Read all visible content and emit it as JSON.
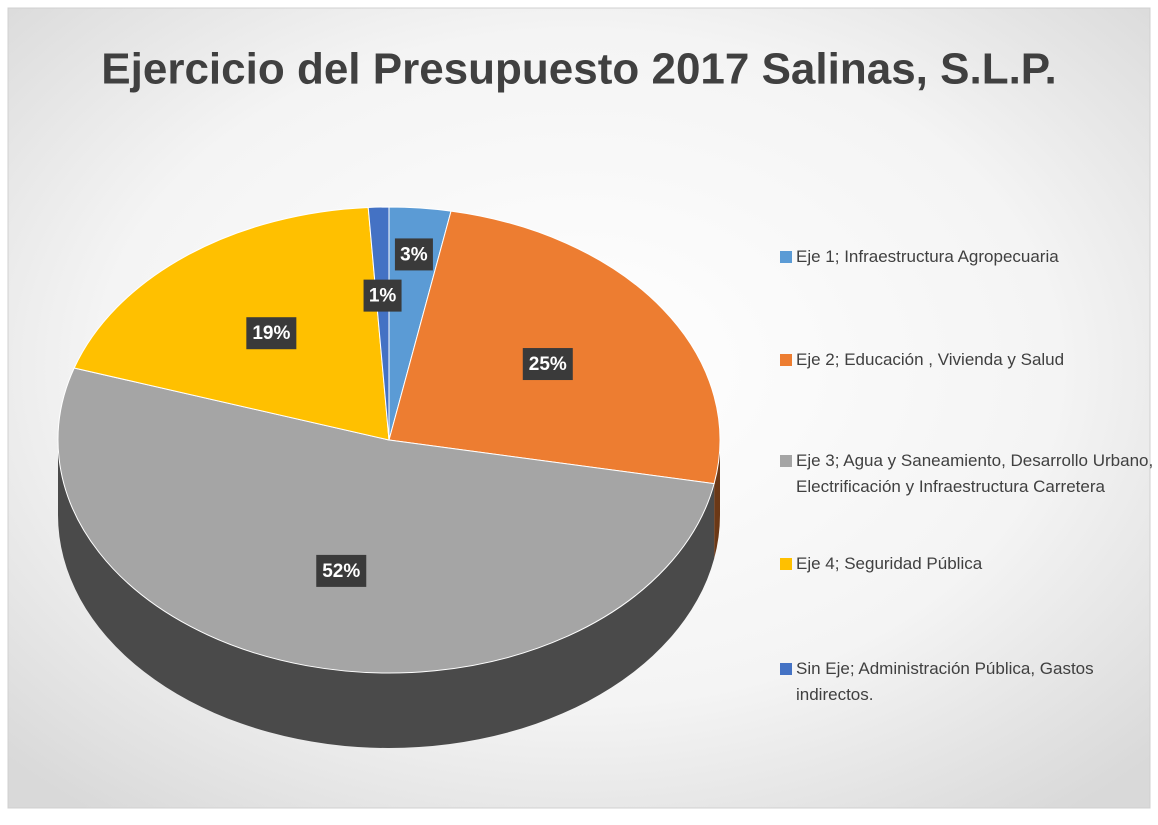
{
  "chart_data": {
    "type": "pie",
    "title": "Ejercicio del Presupuesto 2017 Salinas, S.L.P.",
    "categories": [
      "Eje 1; Infraestructura Agropecuaria",
      "Eje 2; Educación , Vivienda y Salud",
      "Eje 3; Agua y Saneamiento, Desarrollo Urbano, Electrificación y Infraestructura Carretera",
      "Eje 4; Seguridad Pública",
      "Sin Eje; Administración Pública, Gastos indirectos."
    ],
    "values": [
      3,
      25,
      52,
      19,
      1
    ],
    "value_labels": [
      "3%",
      "25%",
      "52%",
      "19%",
      "1%"
    ],
    "colors": [
      "#5b9bd5",
      "#ed7d31",
      "#a5a5a5",
      "#ffc000",
      "#4472c4"
    ],
    "legend": "right"
  }
}
